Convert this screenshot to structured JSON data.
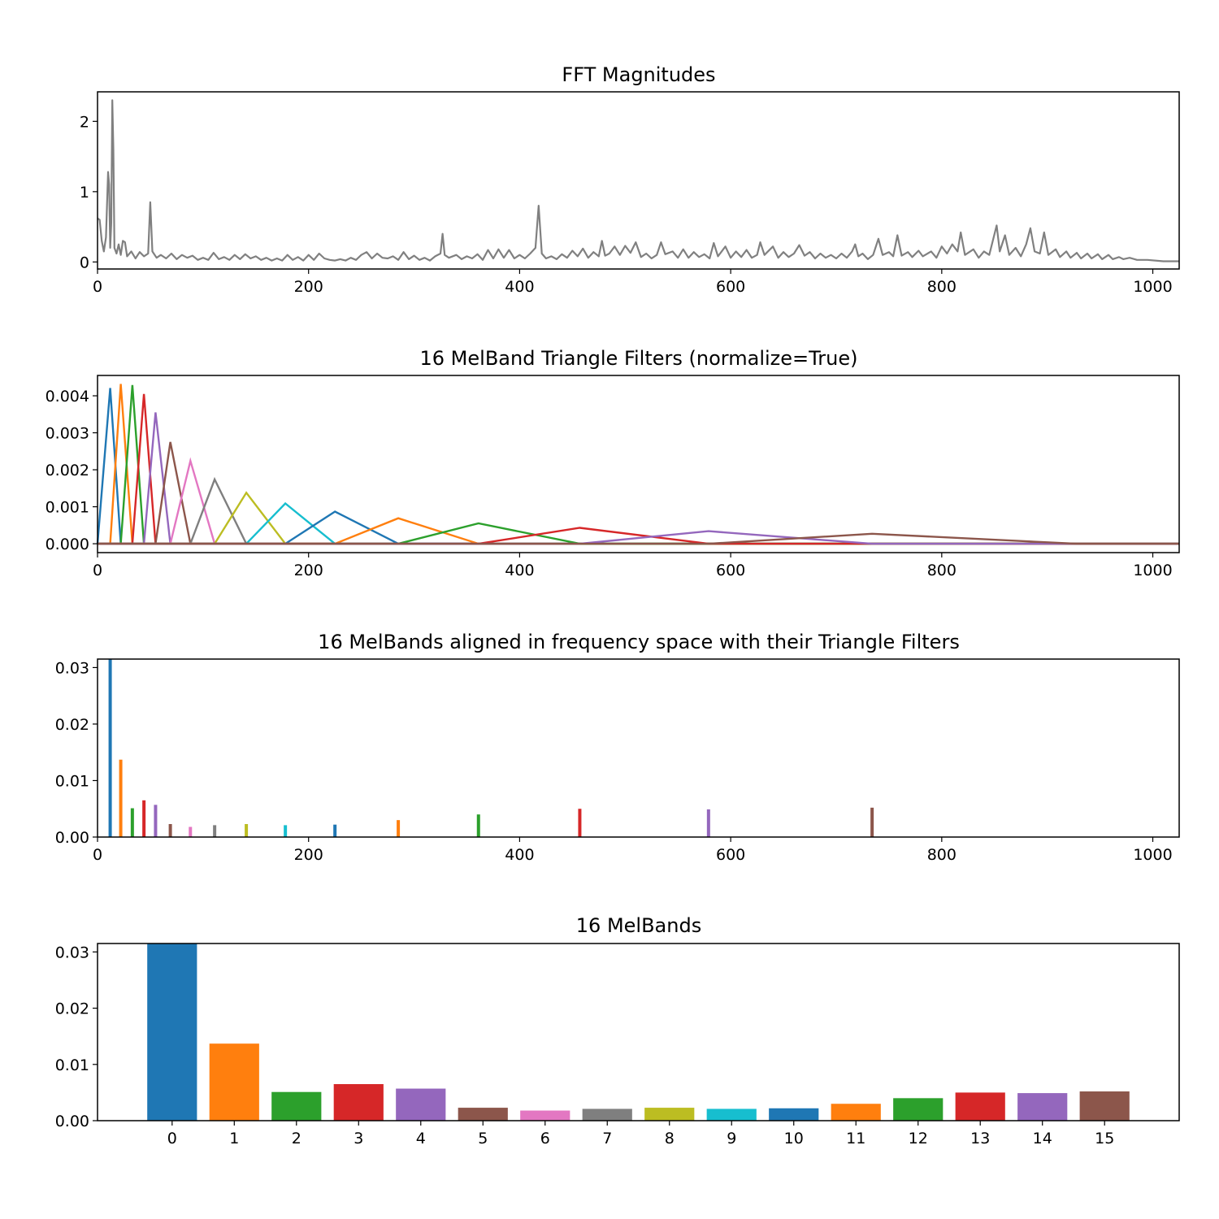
{
  "colors": [
    "#1f77b4",
    "#ff7f0e",
    "#2ca02c",
    "#d62728",
    "#9467bd",
    "#8c564b",
    "#e377c2",
    "#7f7f7f",
    "#bcbd22",
    "#17becf"
  ],
  "chart_data": [
    {
      "type": "line",
      "title": "FFT Magnitudes",
      "xlabel": "",
      "ylabel": "",
      "xlim": [
        0,
        1025
      ],
      "ylim": [
        -0.1,
        2.42
      ],
      "xticks": [
        "0",
        "200",
        "400",
        "600",
        "800",
        "1000"
      ],
      "yticks": [
        "0",
        "1",
        "2"
      ],
      "grid": false,
      "series": [
        {
          "color": "#808080",
          "points": [
            [
              0,
              0.62
            ],
            [
              2,
              0.6
            ],
            [
              4,
              0.3
            ],
            [
              6,
              0.15
            ],
            [
              8,
              0.35
            ],
            [
              10,
              1.28
            ],
            [
              11,
              1.1
            ],
            [
              12,
              0.2
            ],
            [
              13,
              0.55
            ],
            [
              14,
              2.3
            ],
            [
              15,
              1.6
            ],
            [
              16,
              0.2
            ],
            [
              18,
              0.12
            ],
            [
              20,
              0.25
            ],
            [
              22,
              0.1
            ],
            [
              24,
              0.3
            ],
            [
              26,
              0.28
            ],
            [
              28,
              0.08
            ],
            [
              32,
              0.15
            ],
            [
              36,
              0.05
            ],
            [
              40,
              0.14
            ],
            [
              44,
              0.08
            ],
            [
              48,
              0.12
            ],
            [
              50,
              0.85
            ],
            [
              52,
              0.15
            ],
            [
              56,
              0.06
            ],
            [
              60,
              0.1
            ],
            [
              65,
              0.05
            ],
            [
              70,
              0.12
            ],
            [
              75,
              0.04
            ],
            [
              80,
              0.1
            ],
            [
              85,
              0.06
            ],
            [
              90,
              0.09
            ],
            [
              95,
              0.03
            ],
            [
              100,
              0.06
            ],
            [
              105,
              0.03
            ],
            [
              110,
              0.13
            ],
            [
              115,
              0.04
            ],
            [
              120,
              0.07
            ],
            [
              125,
              0.03
            ],
            [
              130,
              0.1
            ],
            [
              135,
              0.04
            ],
            [
              140,
              0.11
            ],
            [
              145,
              0.05
            ],
            [
              150,
              0.08
            ],
            [
              155,
              0.03
            ],
            [
              160,
              0.06
            ],
            [
              165,
              0.02
            ],
            [
              170,
              0.05
            ],
            [
              175,
              0.02
            ],
            [
              180,
              0.1
            ],
            [
              185,
              0.03
            ],
            [
              190,
              0.07
            ],
            [
              195,
              0.02
            ],
            [
              200,
              0.1
            ],
            [
              205,
              0.03
            ],
            [
              210,
              0.12
            ],
            [
              215,
              0.05
            ],
            [
              220,
              0.03
            ],
            [
              225,
              0.02
            ],
            [
              230,
              0.04
            ],
            [
              235,
              0.02
            ],
            [
              240,
              0.06
            ],
            [
              245,
              0.03
            ],
            [
              250,
              0.1
            ],
            [
              255,
              0.14
            ],
            [
              260,
              0.05
            ],
            [
              265,
              0.12
            ],
            [
              270,
              0.06
            ],
            [
              275,
              0.05
            ],
            [
              280,
              0.08
            ],
            [
              285,
              0.03
            ],
            [
              290,
              0.14
            ],
            [
              295,
              0.04
            ],
            [
              300,
              0.09
            ],
            [
              305,
              0.03
            ],
            [
              310,
              0.06
            ],
            [
              315,
              0.02
            ],
            [
              320,
              0.08
            ],
            [
              325,
              0.12
            ],
            [
              327,
              0.4
            ],
            [
              329,
              0.1
            ],
            [
              333,
              0.06
            ],
            [
              340,
              0.1
            ],
            [
              345,
              0.04
            ],
            [
              350,
              0.08
            ],
            [
              355,
              0.05
            ],
            [
              360,
              0.11
            ],
            [
              365,
              0.03
            ],
            [
              370,
              0.17
            ],
            [
              375,
              0.05
            ],
            [
              380,
              0.18
            ],
            [
              385,
              0.06
            ],
            [
              390,
              0.17
            ],
            [
              395,
              0.05
            ],
            [
              400,
              0.1
            ],
            [
              405,
              0.05
            ],
            [
              410,
              0.12
            ],
            [
              415,
              0.2
            ],
            [
              418,
              0.8
            ],
            [
              421,
              0.12
            ],
            [
              425,
              0.05
            ],
            [
              430,
              0.08
            ],
            [
              435,
              0.04
            ],
            [
              440,
              0.11
            ],
            [
              445,
              0.06
            ],
            [
              450,
              0.16
            ],
            [
              455,
              0.08
            ],
            [
              460,
              0.19
            ],
            [
              465,
              0.06
            ],
            [
              470,
              0.14
            ],
            [
              475,
              0.08
            ],
            [
              478,
              0.3
            ],
            [
              481,
              0.09
            ],
            [
              485,
              0.12
            ],
            [
              490,
              0.22
            ],
            [
              495,
              0.1
            ],
            [
              500,
              0.23
            ],
            [
              505,
              0.13
            ],
            [
              510,
              0.28
            ],
            [
              515,
              0.07
            ],
            [
              520,
              0.12
            ],
            [
              525,
              0.05
            ],
            [
              530,
              0.1
            ],
            [
              534,
              0.28
            ],
            [
              538,
              0.11
            ],
            [
              545,
              0.15
            ],
            [
              550,
              0.06
            ],
            [
              555,
              0.18
            ],
            [
              560,
              0.06
            ],
            [
              565,
              0.14
            ],
            [
              570,
              0.07
            ],
            [
              575,
              0.11
            ],
            [
              580,
              0.05
            ],
            [
              584,
              0.27
            ],
            [
              588,
              0.08
            ],
            [
              595,
              0.22
            ],
            [
              600,
              0.06
            ],
            [
              605,
              0.15
            ],
            [
              610,
              0.07
            ],
            [
              615,
              0.17
            ],
            [
              620,
              0.06
            ],
            [
              625,
              0.1
            ],
            [
              628,
              0.28
            ],
            [
              632,
              0.1
            ],
            [
              640,
              0.22
            ],
            [
              645,
              0.06
            ],
            [
              650,
              0.14
            ],
            [
              655,
              0.07
            ],
            [
              660,
              0.12
            ],
            [
              665,
              0.24
            ],
            [
              670,
              0.09
            ],
            [
              675,
              0.14
            ],
            [
              680,
              0.05
            ],
            [
              685,
              0.12
            ],
            [
              690,
              0.06
            ],
            [
              695,
              0.1
            ],
            [
              700,
              0.05
            ],
            [
              705,
              0.12
            ],
            [
              710,
              0.06
            ],
            [
              715,
              0.15
            ],
            [
              718,
              0.25
            ],
            [
              721,
              0.08
            ],
            [
              725,
              0.12
            ],
            [
              730,
              0.04
            ],
            [
              735,
              0.1
            ],
            [
              740,
              0.33
            ],
            [
              744,
              0.1
            ],
            [
              750,
              0.14
            ],
            [
              754,
              0.08
            ],
            [
              758,
              0.38
            ],
            [
              762,
              0.09
            ],
            [
              768,
              0.14
            ],
            [
              772,
              0.07
            ],
            [
              778,
              0.16
            ],
            [
              782,
              0.08
            ],
            [
              790,
              0.15
            ],
            [
              795,
              0.06
            ],
            [
              800,
              0.22
            ],
            [
              805,
              0.12
            ],
            [
              810,
              0.25
            ],
            [
              815,
              0.15
            ],
            [
              818,
              0.42
            ],
            [
              822,
              0.1
            ],
            [
              830,
              0.18
            ],
            [
              835,
              0.06
            ],
            [
              840,
              0.15
            ],
            [
              845,
              0.1
            ],
            [
              852,
              0.52
            ],
            [
              855,
              0.15
            ],
            [
              860,
              0.38
            ],
            [
              864,
              0.1
            ],
            [
              870,
              0.2
            ],
            [
              875,
              0.08
            ],
            [
              880,
              0.25
            ],
            [
              884,
              0.48
            ],
            [
              888,
              0.15
            ],
            [
              893,
              0.12
            ],
            [
              897,
              0.42
            ],
            [
              901,
              0.1
            ],
            [
              908,
              0.18
            ],
            [
              912,
              0.07
            ],
            [
              918,
              0.15
            ],
            [
              922,
              0.06
            ],
            [
              928,
              0.13
            ],
            [
              932,
              0.05
            ],
            [
              938,
              0.12
            ],
            [
              942,
              0.05
            ],
            [
              948,
              0.11
            ],
            [
              952,
              0.04
            ],
            [
              958,
              0.1
            ],
            [
              962,
              0.04
            ],
            [
              968,
              0.07
            ],
            [
              972,
              0.04
            ],
            [
              978,
              0.06
            ],
            [
              985,
              0.03
            ],
            [
              995,
              0.03
            ],
            [
              1010,
              0.01
            ],
            [
              1025,
              0.01
            ]
          ]
        }
      ]
    },
    {
      "type": "line",
      "title": "16 MelBand Triangle Filters (normalize=True)",
      "xlabel": "",
      "ylabel": "",
      "xlim": [
        0,
        1025
      ],
      "ylim": [
        -0.00024,
        0.00455
      ],
      "xticks": [
        "0",
        "200",
        "400",
        "600",
        "800",
        "1000"
      ],
      "yticks": [
        "0.000",
        "0.001",
        "0.002",
        "0.003",
        "0.004"
      ],
      "grid": false,
      "filters": [
        {
          "left": 0,
          "center": 12,
          "right": 22,
          "peak": 0.00421
        },
        {
          "left": 12,
          "center": 22,
          "right": 33,
          "peak": 0.00432
        },
        {
          "left": 22,
          "center": 33,
          "right": 44,
          "peak": 0.00429
        },
        {
          "left": 33,
          "center": 44,
          "right": 55,
          "peak": 0.00405
        },
        {
          "left": 44,
          "center": 55,
          "right": 69,
          "peak": 0.00355
        },
        {
          "left": 55,
          "center": 69,
          "right": 88,
          "peak": 0.00275
        },
        {
          "left": 69,
          "center": 88,
          "right": 111,
          "peak": 0.00224
        },
        {
          "left": 88,
          "center": 111,
          "right": 141,
          "peak": 0.00174
        },
        {
          "left": 111,
          "center": 141,
          "right": 178,
          "peak": 0.00138
        },
        {
          "left": 141,
          "center": 178,
          "right": 225,
          "peak": 0.00109
        },
        {
          "left": 178,
          "center": 225,
          "right": 285,
          "peak": 0.00087
        },
        {
          "left": 225,
          "center": 285,
          "right": 361,
          "peak": 0.00069
        },
        {
          "left": 285,
          "center": 361,
          "right": 457,
          "peak": 0.00055
        },
        {
          "left": 361,
          "center": 457,
          "right": 579,
          "peak": 0.00043
        },
        {
          "left": 457,
          "center": 579,
          "right": 734,
          "peak": 0.00034
        },
        {
          "left": 579,
          "center": 734,
          "right": 928,
          "peak": 0.00027
        }
      ]
    },
    {
      "type": "bar",
      "title": "16 MelBands aligned in frequency space with their Triangle Filters",
      "xlabel": "",
      "ylabel": "",
      "xlim": [
        0,
        1025
      ],
      "ylim": [
        0,
        0.0315
      ],
      "xticks": [
        "0",
        "200",
        "400",
        "600",
        "800",
        "1000"
      ],
      "yticks": [
        "0.00",
        "0.01",
        "0.02",
        "0.03"
      ],
      "grid": false,
      "x": [
        12,
        22,
        33,
        44,
        55,
        69,
        88,
        111,
        141,
        178,
        225,
        285,
        361,
        457,
        579,
        734
      ],
      "values": [
        0.0315,
        0.0137,
        0.0051,
        0.0065,
        0.0057,
        0.0023,
        0.0018,
        0.0021,
        0.0023,
        0.0021,
        0.0022,
        0.003,
        0.004,
        0.005,
        0.0049,
        0.0052
      ]
    },
    {
      "type": "bar",
      "title": "16 MelBands",
      "xlabel": "",
      "ylabel": "",
      "ylim": [
        0,
        0.0315
      ],
      "yticks": [
        "0.00",
        "0.01",
        "0.02",
        "0.03"
      ],
      "grid": false,
      "categories": [
        "0",
        "1",
        "2",
        "3",
        "4",
        "5",
        "6",
        "7",
        "8",
        "9",
        "10",
        "11",
        "12",
        "13",
        "14",
        "15"
      ],
      "values": [
        0.0315,
        0.0137,
        0.0051,
        0.0065,
        0.0057,
        0.0023,
        0.0018,
        0.0021,
        0.0023,
        0.0021,
        0.0022,
        0.003,
        0.004,
        0.005,
        0.0049,
        0.0052
      ]
    }
  ]
}
